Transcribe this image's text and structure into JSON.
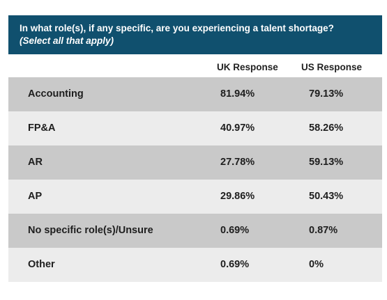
{
  "header": {
    "question": "In what role(s), if any specific, are you experiencing a talent shortage?",
    "instruction": "(Select all that apply)"
  },
  "columns": {
    "role": "",
    "uk": "UK Response",
    "us": "US Response"
  },
  "chart_data": {
    "type": "table",
    "title": "In what role(s), if any specific, are you experiencing a talent shortage? (Select all that apply)",
    "columns": [
      "",
      "UK Response",
      "US Response"
    ],
    "rows": [
      {
        "role": "Accounting",
        "uk": "81.94%",
        "us": "79.13%"
      },
      {
        "role": "FP&A",
        "uk": "40.97%",
        "us": "58.26%"
      },
      {
        "role": "AR",
        "uk": "27.78%",
        "us": "59.13%"
      },
      {
        "role": "AP",
        "uk": "29.86%",
        "us": "50.43%"
      },
      {
        "role": "No specific role(s)/Unsure",
        "uk": "0.69%",
        "us": "0.87%"
      },
      {
        "role": "Other",
        "uk": "0.69%",
        "us": "0%"
      }
    ]
  },
  "colors": {
    "header_bg": "#10506e",
    "row_dark": "#c9c9c9",
    "row_light": "#ececec"
  }
}
